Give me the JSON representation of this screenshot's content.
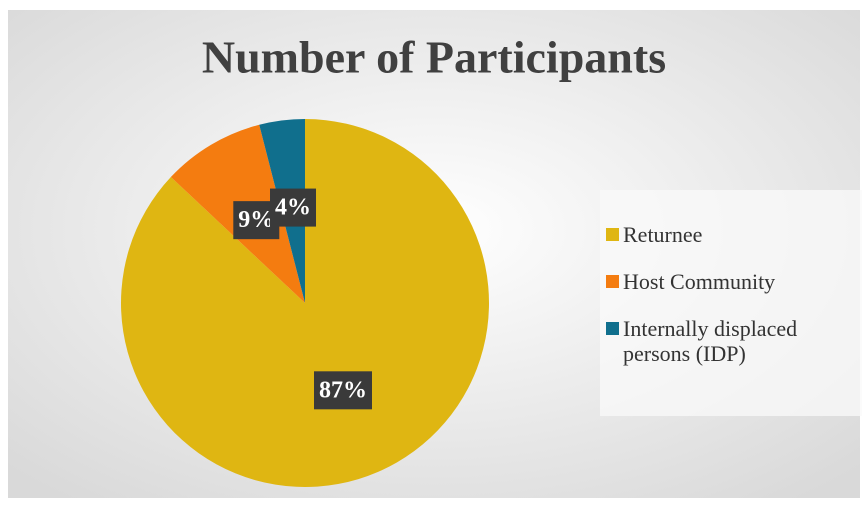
{
  "chart_data": {
    "type": "pie",
    "title": "Number of Participants",
    "categories": [
      "Returnee",
      "Host Community",
      "Internally displaced persons (IDP)"
    ],
    "values": [
      87,
      9,
      4
    ],
    "value_labels": [
      "87%",
      "9%",
      "4%"
    ],
    "colors": [
      "#DFB612",
      "#F47C10",
      "#106F8D"
    ],
    "legend": "right"
  }
}
